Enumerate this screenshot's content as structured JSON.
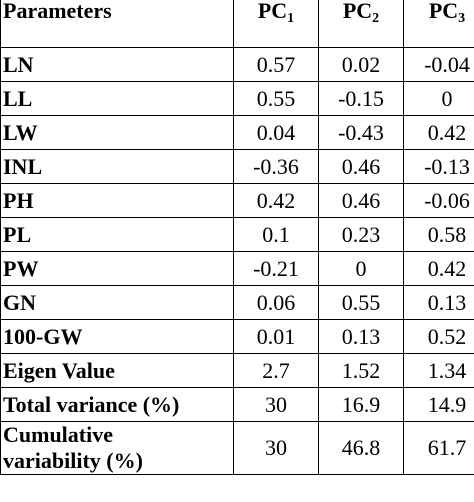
{
  "table": {
    "header": {
      "parameters": "Parameters",
      "columns": [
        {
          "base": "PC",
          "sub": "1"
        },
        {
          "base": "PC",
          "sub": "2"
        },
        {
          "base": "PC",
          "sub": "3"
        }
      ]
    },
    "rows": [
      {
        "label": "LN",
        "values": [
          "0.57",
          "0.02",
          "-0.04"
        ]
      },
      {
        "label": "LL",
        "values": [
          "0.55",
          "-0.15",
          "0"
        ]
      },
      {
        "label": "LW",
        "values": [
          "0.04",
          "-0.43",
          "0.42"
        ]
      },
      {
        "label": "INL",
        "values": [
          "-0.36",
          "0.46",
          "-0.13"
        ]
      },
      {
        "label": "PH",
        "values": [
          "0.42",
          "0.46",
          "-0.06"
        ]
      },
      {
        "label": "PL",
        "values": [
          "0.1",
          "0.23",
          "0.58"
        ]
      },
      {
        "label": "PW",
        "values": [
          "-0.21",
          "0",
          "0.42"
        ]
      },
      {
        "label": "GN",
        "values": [
          "0.06",
          "0.55",
          "0.13"
        ]
      },
      {
        "label": "100-GW",
        "values": [
          "0.01",
          "0.13",
          "0.52"
        ]
      },
      {
        "label": "Eigen Value",
        "values": [
          "2.7",
          "1.52",
          "1.34"
        ]
      },
      {
        "label": "Total variance (%)",
        "values": [
          "30",
          "16.9",
          "14.9"
        ]
      }
    ],
    "last_row": {
      "label_line1": "Cumulative",
      "label_line2": "variability (%)",
      "values": [
        "30",
        "46.8",
        "61.7"
      ]
    }
  }
}
